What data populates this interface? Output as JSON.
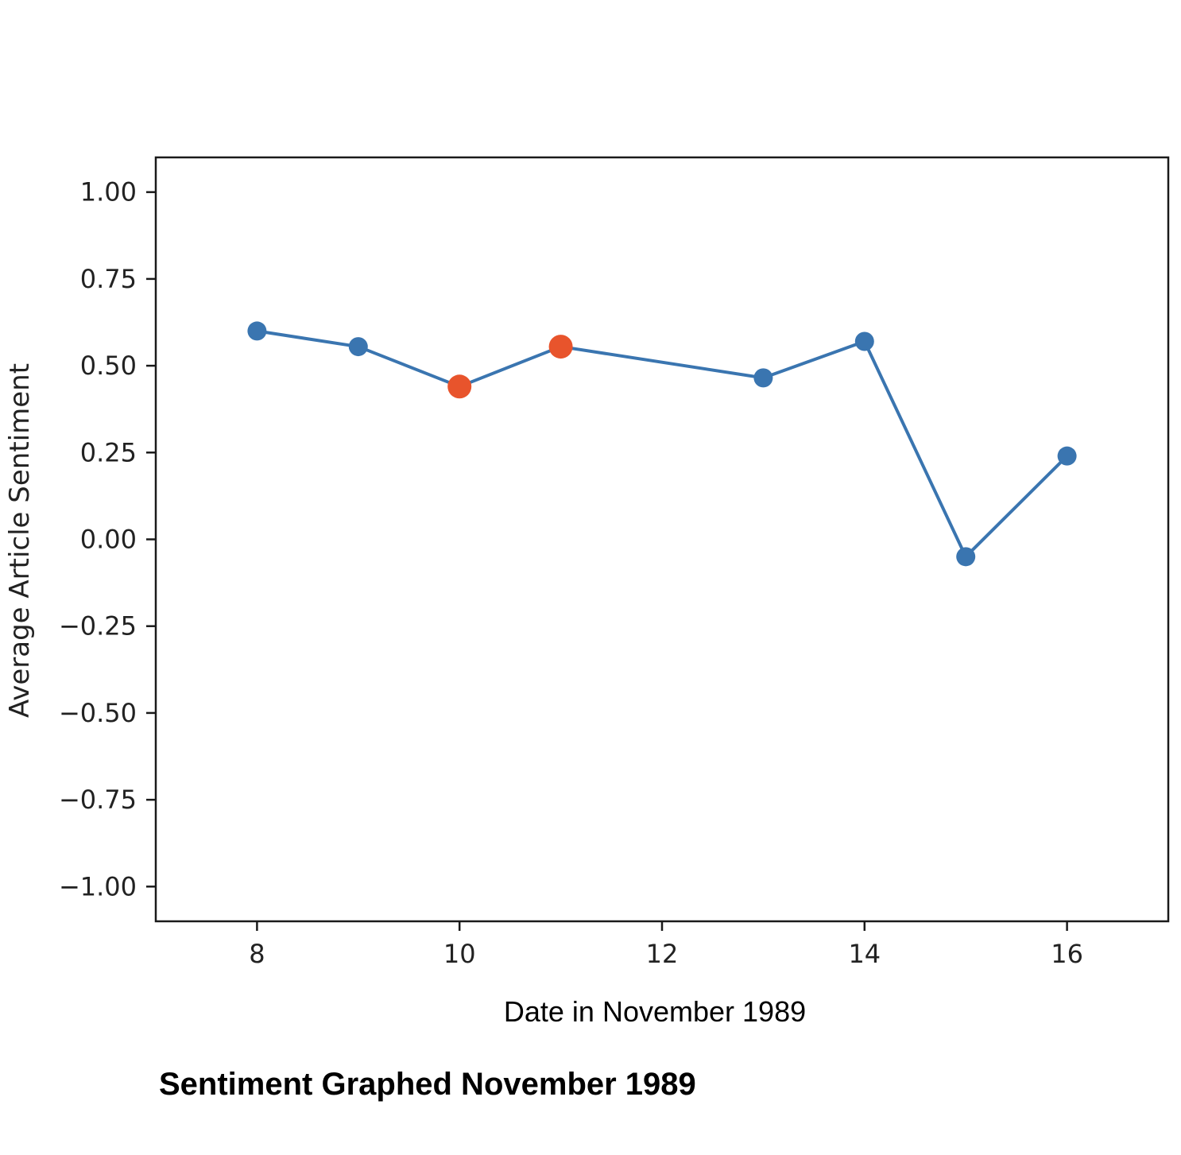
{
  "chart_data": {
    "type": "line",
    "xlabel": "Date in November 1989",
    "ylabel": "Average Article Sentiment",
    "caption": "Sentiment Graphed November 1989",
    "xlim": [
      7,
      17
    ],
    "ylim": [
      -1.1,
      1.1
    ],
    "x_ticks": [
      8,
      10,
      12,
      14,
      16
    ],
    "x_tick_labels": [
      "8",
      "10",
      "12",
      "14",
      "16"
    ],
    "y_ticks": [
      1.0,
      0.75,
      0.5,
      0.25,
      0.0,
      -0.25,
      -0.5,
      -0.75,
      -1.0
    ],
    "y_tick_labels": [
      "1.00",
      "0.75",
      "0.50",
      "0.25",
      "0.00",
      "−0.25",
      "−0.50",
      "−0.75",
      "−1.00"
    ],
    "grid": false,
    "line_color": "#3a75b0",
    "highlight_color": "#e8542c",
    "series": [
      {
        "x": [
          8,
          9,
          10,
          11,
          13,
          14,
          15,
          16
        ],
        "y": [
          0.6,
          0.555,
          0.44,
          0.555,
          0.465,
          0.57,
          -0.05,
          0.24
        ],
        "highlighted": [
          false,
          false,
          true,
          true,
          false,
          false,
          false,
          false
        ]
      }
    ]
  }
}
